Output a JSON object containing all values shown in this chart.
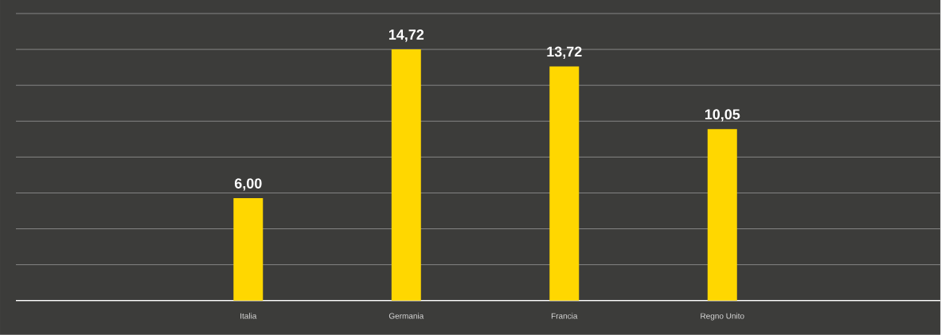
{
  "chart_data": {
    "type": "bar",
    "categories": [
      "Italia",
      "Germania",
      "Francia",
      "Regno Unito"
    ],
    "values": [
      6.0,
      14.72,
      13.72,
      10.05
    ],
    "value_labels": [
      "6,00",
      "14,72",
      "13,72",
      "10,05"
    ],
    "color": "#ffd700",
    "grid": "y",
    "tick_labels": "x"
  }
}
